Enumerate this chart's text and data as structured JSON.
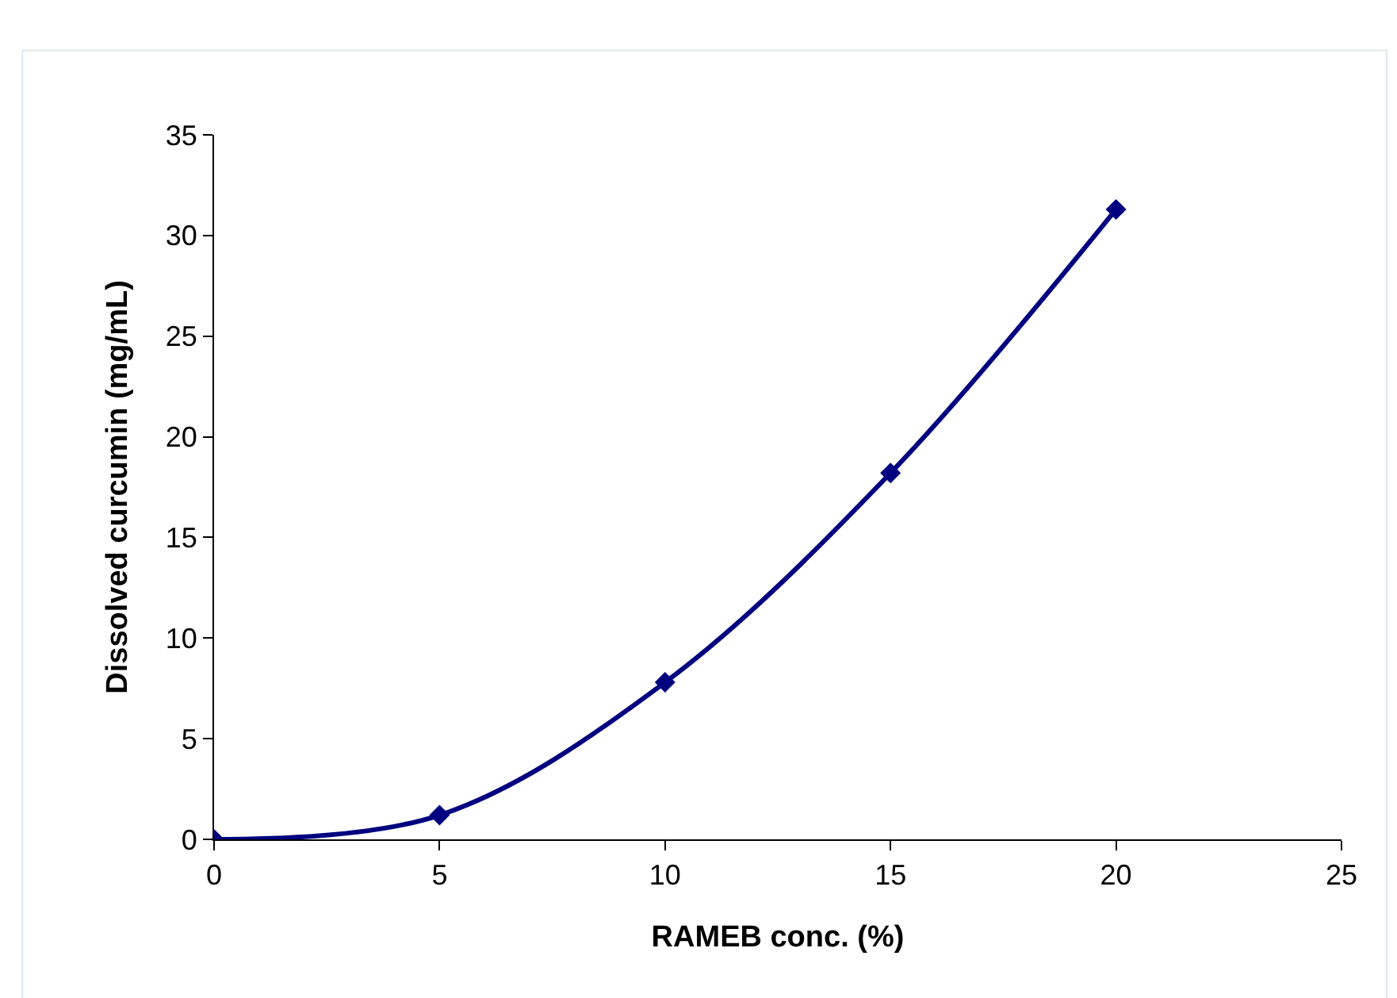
{
  "chart_data": {
    "type": "line",
    "xlabel": "RAMEB conc. (%)",
    "ylabel": "Dissolved curcumin (mg/mL)",
    "x": [
      0,
      5,
      10,
      15,
      20
    ],
    "series": [
      {
        "color": "#000080",
        "values": [
          0,
          1.2,
          7.8,
          18.2,
          31.3
        ]
      }
    ],
    "xlim": [
      0,
      25
    ],
    "xticks": [
      0,
      5,
      10,
      15,
      20,
      25
    ],
    "ylim": [
      0,
      35
    ],
    "yticks": [
      0,
      5,
      10,
      15,
      20,
      25,
      30,
      35
    ],
    "marker": "diamond",
    "line_style": "solid"
  }
}
